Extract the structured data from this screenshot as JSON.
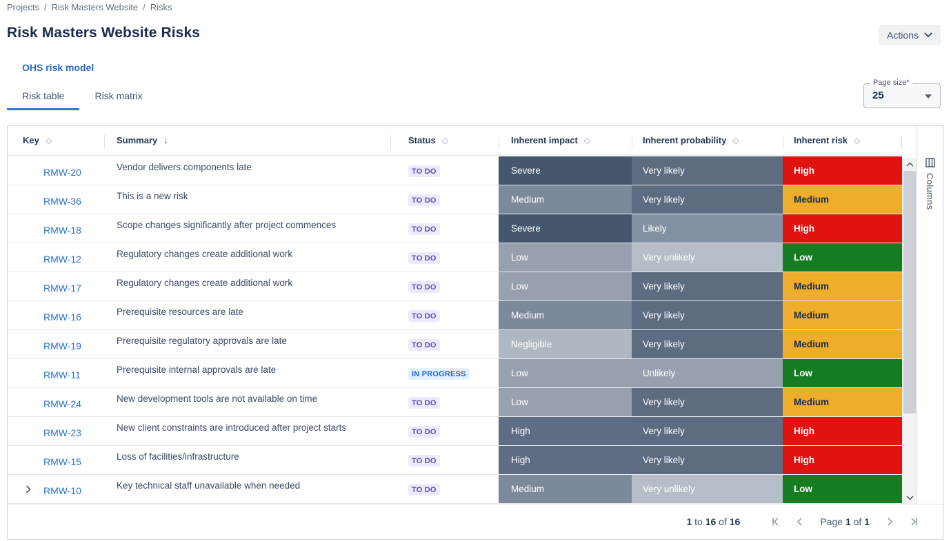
{
  "breadcrumb": {
    "separator": "/",
    "items": [
      {
        "label": "Projects"
      },
      {
        "label": "Risk Masters Website"
      },
      {
        "label": "Risks"
      }
    ]
  },
  "header": {
    "title": "Risk Masters Website Risks",
    "actions_button": "Actions"
  },
  "links": {
    "risk_model": "OHS risk model"
  },
  "tabs": [
    {
      "label": "Risk table",
      "active": true
    },
    {
      "label": "Risk matrix",
      "active": false
    }
  ],
  "page_size": {
    "label": "Page size*",
    "value": "25"
  },
  "icons": {
    "sort_both": "◇",
    "sort_desc": "↓"
  },
  "table": {
    "columns": [
      {
        "id": "key",
        "label": "Key",
        "sort": "none"
      },
      {
        "id": "summary",
        "label": "Summary",
        "sort": "desc"
      },
      {
        "id": "status",
        "label": "Status",
        "sort": "none"
      },
      {
        "id": "impact",
        "label": "Inherent impact",
        "sort": "none"
      },
      {
        "id": "probability",
        "label": "Inherent probability",
        "sort": "none"
      },
      {
        "id": "risk",
        "label": "Inherent risk",
        "sort": "none"
      }
    ],
    "rows": [
      {
        "key": "RMW-20",
        "summary": "Vendor delivers components late",
        "status": "TO DO",
        "impact": "Severe",
        "probability": "Very likely",
        "risk": "High",
        "expandable": false
      },
      {
        "key": "RMW-36",
        "summary": "This is a new risk",
        "status": "TO DO",
        "impact": "Medium",
        "probability": "Very likely",
        "risk": "Medium",
        "expandable": false
      },
      {
        "key": "RMW-18",
        "summary": "Scope changes significantly after project commences",
        "status": "TO DO",
        "impact": "Severe",
        "probability": "Likely",
        "risk": "High",
        "expandable": false
      },
      {
        "key": "RMW-12",
        "summary": "Regulatory changes create additional work",
        "status": "TO DO",
        "impact": "Low",
        "probability": "Very unlikely",
        "risk": "Low",
        "expandable": false
      },
      {
        "key": "RMW-17",
        "summary": "Regulatory changes create additional work",
        "status": "TO DO",
        "impact": "Low",
        "probability": "Very likely",
        "risk": "Medium",
        "expandable": false
      },
      {
        "key": "RMW-16",
        "summary": "Prerequisite resources are late",
        "status": "TO DO",
        "impact": "Medium",
        "probability": "Very likely",
        "risk": "Medium",
        "expandable": false
      },
      {
        "key": "RMW-19",
        "summary": "Prerequisite regulatory approvals are late",
        "status": "TO DO",
        "impact": "Negligible",
        "probability": "Very likely",
        "risk": "Medium",
        "expandable": false
      },
      {
        "key": "RMW-11",
        "summary": "Prerequisite internal approvals are late",
        "status": "IN PROGRESS",
        "impact": "Low",
        "probability": "Unlikely",
        "risk": "Low",
        "expandable": false
      },
      {
        "key": "RMW-24",
        "summary": "New development tools are not available on time",
        "status": "TO DO",
        "impact": "Low",
        "probability": "Very likely",
        "risk": "Medium",
        "expandable": false
      },
      {
        "key": "RMW-23",
        "summary": "New client constraints are introduced after project starts",
        "status": "TO DO",
        "impact": "High",
        "probability": "Very likely",
        "risk": "High",
        "expandable": false
      },
      {
        "key": "RMW-15",
        "summary": "Loss of facilities/infrastructure",
        "status": "TO DO",
        "impact": "High",
        "probability": "Very likely",
        "risk": "High",
        "expandable": false
      },
      {
        "key": "RMW-10",
        "summary": "Key technical staff unavailable when needed",
        "status": "TO DO",
        "impact": "Medium",
        "probability": "Very unlikely",
        "risk": "Low",
        "expandable": true
      }
    ],
    "columns_button_label": "Columns"
  },
  "footer": {
    "range_parts": [
      {
        "text": "1",
        "bold": true
      },
      {
        "text": " to ",
        "bold": false
      },
      {
        "text": "16",
        "bold": true
      },
      {
        "text": " of ",
        "bold": false
      },
      {
        "text": "16",
        "bold": true
      }
    ],
    "page_parts": [
      {
        "text": "Page ",
        "bold": false
      },
      {
        "text": "1",
        "bold": true
      },
      {
        "text": " of ",
        "bold": false
      },
      {
        "text": "1",
        "bold": true
      }
    ]
  },
  "colors": {
    "accent": "#2E77D2",
    "impact": {
      "Severe": "#45566D",
      "High": "#5F6D84",
      "Medium": "#7C899B",
      "Low": "#96A0AF",
      "Negligible": "#AFB7C2"
    },
    "probability": {
      "Very likely": "#5E6C82",
      "Likely": "#8391A4",
      "Unlikely": "#96A0AF",
      "Very unlikely": "#B5BDC8"
    },
    "risk": {
      "High": {
        "bg": "#E01311",
        "fg": "#FFFFFF"
      },
      "Medium": {
        "bg": "#EEAD2A",
        "fg": "#172B4D"
      },
      "Low": {
        "bg": "#167C22",
        "fg": "#FFFFFF"
      }
    },
    "status": {
      "TO DO": {
        "bg": "#ECEAFC",
        "fg": "#5E4DB2"
      },
      "IN PROGRESS": {
        "bg": "#E5F0FF",
        "fg": "#1868DB"
      }
    }
  }
}
